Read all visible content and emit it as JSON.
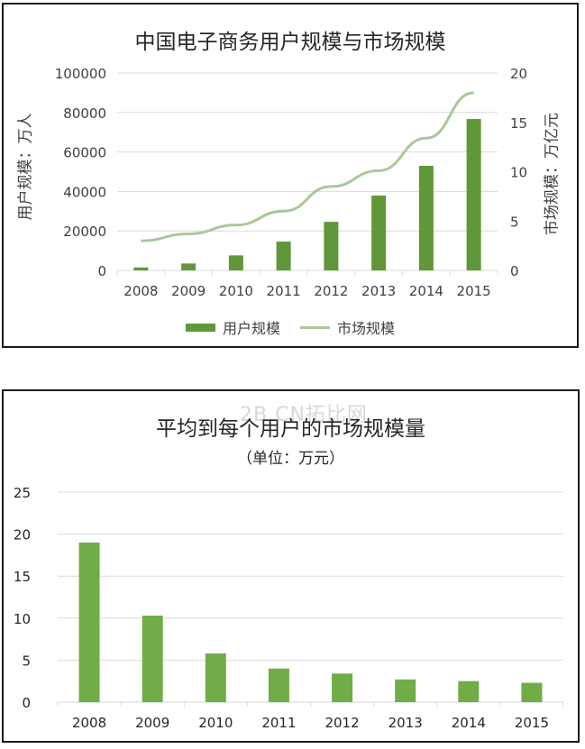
{
  "chart_data": [
    {
      "type": "bar+line",
      "title": "中国电子商务用户规模与市场规模",
      "categories": [
        "2008",
        "2009",
        "2010",
        "2011",
        "2012",
        "2013",
        "2014",
        "2015"
      ],
      "series": [
        {
          "name": "用户规模",
          "type": "bar",
          "axis": "left",
          "color": "#5f9739",
          "values": [
            1500,
            3500,
            7600,
            14600,
            24600,
            37900,
            53000,
            76700
          ]
        },
        {
          "name": "市场规模",
          "type": "line",
          "axis": "right",
          "color": "#a9c89a",
          "values": [
            3.0,
            3.7,
            4.6,
            6.0,
            8.5,
            10.1,
            13.4,
            18.0
          ]
        }
      ],
      "ylabel": "用户规模：万人",
      "ylabel_right": "市场规模：万亿元",
      "xlabel": "",
      "ylim": [
        0,
        100000
      ],
      "ylim_right": [
        0,
        20
      ],
      "yticks": [
        "0",
        "20000",
        "40000",
        "60000",
        "80000",
        "100000"
      ],
      "yticks_right": [
        "0",
        "5",
        "10",
        "15",
        "20"
      ],
      "grid": true,
      "legend_position": "bottom"
    },
    {
      "type": "bar",
      "title": "平均到每个用户的市场规模量",
      "subtitle": "（单位：万元）",
      "categories": [
        "2008",
        "2009",
        "2010",
        "2011",
        "2012",
        "2013",
        "2014",
        "2015"
      ],
      "values": [
        19.0,
        10.3,
        5.8,
        4.0,
        3.4,
        2.7,
        2.5,
        2.3
      ],
      "color": "#70ad47",
      "xlabel": "",
      "ylabel": "",
      "ylim": [
        0,
        25
      ],
      "yticks": [
        "0",
        "5",
        "10",
        "15",
        "20",
        "25"
      ],
      "grid": true
    }
  ],
  "chart1": {
    "title": "中国电子商务用户规模与市场规模",
    "ylabel": "用户规模：万人",
    "ylabel_right": "市场规模：万亿元",
    "legend": {
      "bar_label": "用户规模",
      "line_label": "市场规模"
    }
  },
  "chart2": {
    "title": "平均到每个用户的市场规模量",
    "subtitle": "（单位：万元）"
  },
  "watermark": "2B.CN拓比网"
}
